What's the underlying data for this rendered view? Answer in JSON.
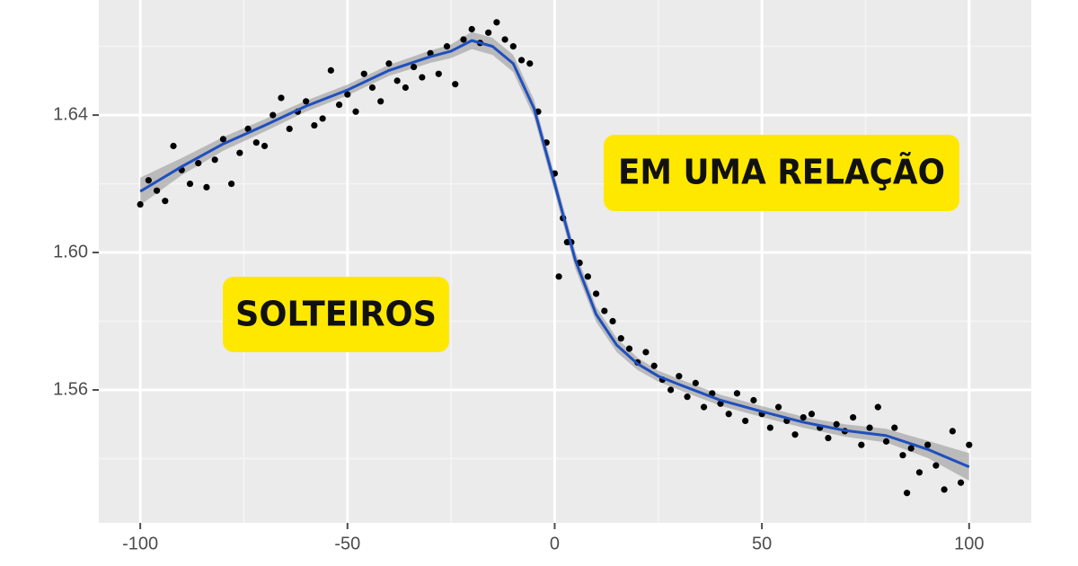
{
  "chart_data": {
    "type": "scatter",
    "xlim": [
      -110,
      115
    ],
    "ylim": [
      1.5213,
      1.6735
    ],
    "xticks": [
      -100,
      -50,
      0,
      50,
      100
    ],
    "yticks": [
      1.56,
      {
        "value": 1.6,
        "label": "1.60"
      },
      1.64
    ],
    "minor_xticks": [
      -75,
      -25,
      25,
      75
    ],
    "minor_yticks": [
      1.54,
      1.58,
      1.62,
      1.66
    ],
    "grid": true,
    "annotations": [
      "SOLTEIROS",
      "EM UMA RELAÇÃO"
    ],
    "points": {
      "color": "#000000",
      "x": [
        -100,
        -98,
        -96,
        -94,
        -92,
        -90,
        -88,
        -86,
        -84,
        -82,
        -80,
        -78,
        -76,
        -74,
        -72,
        -70,
        -68,
        -66,
        -64,
        -62,
        -60,
        -58,
        -56,
        -54,
        -52,
        -50,
        -48,
        -46,
        -44,
        -42,
        -40,
        -38,
        -36,
        -34,
        -32,
        -30,
        -28,
        -26,
        -24,
        -22,
        -20,
        -18,
        -16,
        -14,
        -12,
        -10,
        -8,
        -6,
        -4,
        -2,
        0,
        1,
        2,
        3,
        4,
        6,
        8,
        10,
        12,
        14,
        16,
        18,
        20,
        22,
        24,
        26,
        28,
        30,
        32,
        34,
        36,
        38,
        40,
        42,
        44,
        46,
        48,
        50,
        52,
        54,
        56,
        58,
        60,
        62,
        64,
        66,
        68,
        70,
        72,
        74,
        76,
        78,
        80,
        82,
        84,
        85,
        86,
        88,
        90,
        92,
        94,
        96,
        98,
        100
      ],
      "y": [
        1.614,
        1.621,
        1.618,
        1.615,
        1.631,
        1.624,
        1.62,
        1.626,
        1.619,
        1.627,
        1.633,
        1.62,
        1.629,
        1.636,
        1.632,
        1.631,
        1.64,
        1.645,
        1.636,
        1.641,
        1.644,
        1.637,
        1.639,
        1.653,
        1.643,
        1.646,
        1.641,
        1.652,
        1.648,
        1.644,
        1.655,
        1.65,
        1.648,
        1.654,
        1.651,
        1.658,
        1.652,
        1.66,
        1.649,
        1.662,
        1.665,
        1.661,
        1.664,
        1.667,
        1.662,
        1.66,
        1.656,
        1.655,
        1.641,
        1.632,
        1.623,
        1.593,
        1.61,
        1.603,
        1.603,
        1.597,
        1.593,
        1.588,
        1.583,
        1.58,
        1.575,
        1.572,
        1.568,
        1.571,
        1.567,
        1.563,
        1.56,
        1.564,
        1.558,
        1.562,
        1.555,
        1.559,
        1.556,
        1.553,
        1.559,
        1.551,
        1.557,
        1.553,
        1.549,
        1.555,
        1.551,
        1.547,
        1.552,
        1.553,
        1.549,
        1.546,
        1.55,
        1.548,
        1.552,
        1.544,
        1.549,
        1.555,
        1.545,
        1.549,
        1.541,
        1.53,
        1.543,
        1.536,
        1.544,
        1.538,
        1.531,
        1.548,
        1.533,
        1.544
      ]
    },
    "smooth": {
      "color": "#1f4fbf",
      "band_color": "#999999",
      "x": [
        -100,
        -90,
        -80,
        -70,
        -60,
        -50,
        -40,
        -30,
        -25,
        -20,
        -15,
        -10,
        -5,
        0,
        5,
        10,
        15,
        20,
        25,
        30,
        40,
        50,
        60,
        70,
        80,
        90,
        100
      ],
      "y": [
        1.6178,
        1.625,
        1.6316,
        1.637,
        1.6426,
        1.6473,
        1.653,
        1.657,
        1.6586,
        1.6617,
        1.66,
        1.655,
        1.642,
        1.62,
        1.5977,
        1.582,
        1.573,
        1.5676,
        1.564,
        1.5616,
        1.557,
        1.5537,
        1.5506,
        1.5482,
        1.5467,
        1.5427,
        1.5376
      ],
      "lower": [
        1.6138,
        1.6225,
        1.6296,
        1.6352,
        1.641,
        1.6457,
        1.6514,
        1.6552,
        1.6566,
        1.6592,
        1.6575,
        1.6525,
        1.6395,
        1.6175,
        1.5952,
        1.5798,
        1.571,
        1.5658,
        1.5624,
        1.56,
        1.5554,
        1.5521,
        1.549,
        1.5464,
        1.5447,
        1.5402,
        1.5336
      ],
      "upper": [
        1.6218,
        1.6275,
        1.6336,
        1.6388,
        1.6442,
        1.6489,
        1.6546,
        1.6588,
        1.6606,
        1.6642,
        1.6625,
        1.6575,
        1.6445,
        1.6225,
        1.6002,
        1.5842,
        1.575,
        1.5694,
        1.5656,
        1.5632,
        1.5586,
        1.5553,
        1.5522,
        1.55,
        1.5487,
        1.5452,
        1.5416
      ]
    }
  }
}
